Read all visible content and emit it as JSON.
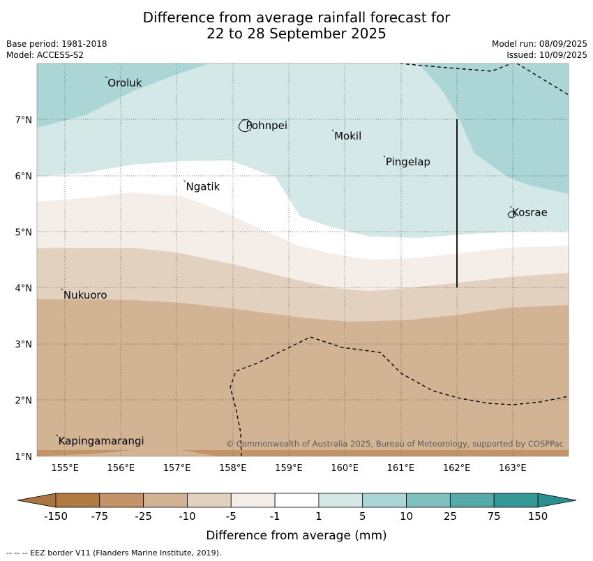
{
  "title": {
    "line1": "Difference from average rainfall forecast for",
    "line2": "22 to 28 September 2025"
  },
  "meta": {
    "base_period": "Base period: 1981-2018",
    "model": "Model: ACCESS-S2",
    "model_run": "Model run: 08/09/2025",
    "issued": "Issued: 10/09/2025"
  },
  "map": {
    "lon_range": [
      154.5,
      164.0
    ],
    "lat_range": [
      1.0,
      8.0
    ],
    "lon_ticks": [
      {
        "value": 155,
        "label": "155°E"
      },
      {
        "value": 156,
        "label": "156°E"
      },
      {
        "value": 157,
        "label": "157°E"
      },
      {
        "value": 158,
        "label": "158°E"
      },
      {
        "value": 159,
        "label": "159°E"
      },
      {
        "value": 160,
        "label": "160°E"
      },
      {
        "value": 161,
        "label": "161°E"
      },
      {
        "value": 162,
        "label": "162°E"
      },
      {
        "value": 163,
        "label": "163°E"
      }
    ],
    "lat_ticks": [
      {
        "value": 1,
        "label": "1°N"
      },
      {
        "value": 2,
        "label": "2°N"
      },
      {
        "value": 3,
        "label": "3°N"
      },
      {
        "value": 4,
        "label": "4°N"
      },
      {
        "value": 5,
        "label": "5°N"
      },
      {
        "value": 6,
        "label": "6°N"
      },
      {
        "value": 7,
        "label": "7°N"
      }
    ],
    "grid": true,
    "places": [
      {
        "name": "Oroluk",
        "lon": 155.75,
        "lat": 7.63
      },
      {
        "name": "Pohnpei",
        "lon": 158.22,
        "lat": 6.87
      },
      {
        "name": "Mokil",
        "lon": 159.8,
        "lat": 6.68
      },
      {
        "name": "Pingelap",
        "lon": 160.72,
        "lat": 6.22
      },
      {
        "name": "Ngatik",
        "lon": 157.15,
        "lat": 5.78
      },
      {
        "name": "Kosrae",
        "lon": 162.98,
        "lat": 5.32
      },
      {
        "name": "Nukuoro",
        "lon": 154.96,
        "lat": 3.85
      },
      {
        "name": "Kapingamarangi",
        "lon": 154.87,
        "lat": 1.25
      }
    ],
    "copyright": "© Commonwealth of Australia 2025, Bureau of Meteorology, supported by COSPPac"
  },
  "legend": {
    "title": "Difference from average (mm)",
    "ticks": [
      "-150",
      "-75",
      "-25",
      "-10",
      "-5",
      "-1",
      "1",
      "5",
      "10",
      "25",
      "75",
      "150"
    ],
    "colors": [
      "#b07a42",
      "#c39467",
      "#d2b393",
      "#e2d1bf",
      "#f4ede8",
      "#ffffff",
      "#d5e8e8",
      "#acd6d6",
      "#80bfbf",
      "#56a9a9",
      "#359898"
    ],
    "under_color": "#a9743f",
    "over_color": "#2c8f8f"
  },
  "footer": "--  --  -- EEZ border V11 (Flanders Marine Institute, 2019)."
}
